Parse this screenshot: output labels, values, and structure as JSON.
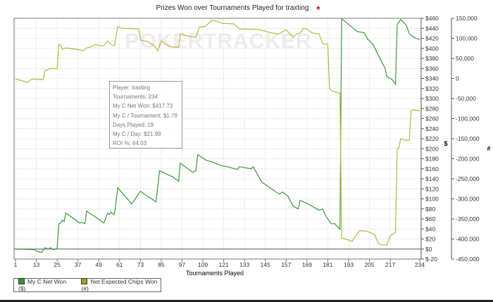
{
  "chart_data": {
    "type": "line",
    "title": "Prizes Won over Tournaments Played for traxting",
    "xlabel": "Tournaments Played",
    "ylabel_left": "$",
    "ylabel_right": "#",
    "xlim": [
      1,
      234
    ],
    "ylim_left": [
      -20,
      460
    ],
    "ylim_right": [
      -450000,
      150000
    ],
    "grid": true,
    "legend_position": "bottom-left",
    "x_ticks": [
      "1",
      "13",
      "25",
      "37",
      "49",
      "61",
      "73",
      "85",
      "97",
      "109",
      "121",
      "133",
      "145",
      "157",
      "169",
      "181",
      "193",
      "205",
      "217",
      "234"
    ],
    "x_tick_values": [
      1,
      13,
      25,
      37,
      49,
      61,
      73,
      85,
      97,
      109,
      121,
      133,
      145,
      157,
      169,
      181,
      193,
      205,
      217,
      234
    ],
    "y_left_ticks": [
      "$-20",
      "$0",
      "$20",
      "$40",
      "$60",
      "$80",
      "$100",
      "$120",
      "$140",
      "$160",
      "$180",
      "$200",
      "$220",
      "$240",
      "$260",
      "$280",
      "$300",
      "$320",
      "$340",
      "$360",
      "$380",
      "$400",
      "$420",
      "$440",
      "$460"
    ],
    "y_left_tick_values": [
      -20,
      0,
      20,
      40,
      60,
      80,
      100,
      120,
      140,
      160,
      180,
      200,
      220,
      240,
      260,
      280,
      300,
      320,
      340,
      360,
      380,
      400,
      420,
      440,
      460
    ],
    "y_right_ticks": [
      "-450,000",
      "-400,000",
      "-350,000",
      "-300,000",
      "-250,000",
      "-200,000",
      "-150,000",
      "-100,000",
      "-50,000",
      "0",
      "50,000",
      "100,000",
      "150,000"
    ],
    "y_right_tick_values": [
      -450000,
      -400000,
      -350000,
      -300000,
      -250000,
      -200000,
      -150000,
      -100000,
      -50000,
      0,
      50000,
      100000,
      150000
    ],
    "series": [
      {
        "name": "My C Net Won ($)",
        "axis": "left",
        "color": "#3a9a3a",
        "points": [
          [
            1,
            0
          ],
          [
            12,
            -1.4
          ],
          [
            14,
            -5.6
          ],
          [
            16,
            -7
          ],
          [
            18,
            2.8
          ],
          [
            20,
            0
          ],
          [
            21,
            2.8
          ],
          [
            23,
            -1.4
          ],
          [
            25,
            1.4
          ],
          [
            26,
            50.5
          ],
          [
            27,
            51.9
          ],
          [
            28,
            57.5
          ],
          [
            29,
            54.7
          ],
          [
            30,
            71.6
          ],
          [
            38,
            51.9
          ],
          [
            39,
            53.3
          ],
          [
            41,
            50.5
          ],
          [
            42,
            75.8
          ],
          [
            52,
            51.9
          ],
          [
            54,
            71.6
          ],
          [
            55,
            68.8
          ],
          [
            56,
            73
          ],
          [
            58,
            68.8
          ],
          [
            60,
            122.1
          ],
          [
            68,
            89.8
          ],
          [
            73,
            115.1
          ],
          [
            82,
            94
          ],
          [
            84,
            155.8
          ],
          [
            92,
            143.2
          ],
          [
            95,
            134.7
          ],
          [
            96,
            171.2
          ],
          [
            103,
            153
          ],
          [
            105,
            155.8
          ],
          [
            106,
            188.1
          ],
          [
            111,
            176.8
          ],
          [
            114,
            174
          ],
          [
            119,
            167
          ],
          [
            123,
            164.2
          ],
          [
            129,
            158.6
          ],
          [
            130,
            164.2
          ],
          [
            137,
            160
          ],
          [
            138,
            164.2
          ],
          [
            143,
            133.3
          ],
          [
            153,
            109.5
          ],
          [
            155,
            113.7
          ],
          [
            158,
            105.3
          ],
          [
            161,
            85.6
          ],
          [
            164,
            80
          ],
          [
            165,
            96.8
          ],
          [
            169,
            91.2
          ],
          [
            176,
            77.2
          ],
          [
            178,
            80
          ],
          [
            180,
            64.6
          ],
          [
            183,
            50.5
          ],
          [
            185,
            50.5
          ],
          [
            188,
            39.3
          ],
          [
            189,
            459
          ],
          [
            194,
            444.9
          ],
          [
            198,
            433.7
          ],
          [
            202,
            430.9
          ],
          [
            204,
            418.3
          ],
          [
            207,
            408.4
          ],
          [
            210,
            387.4
          ],
          [
            214,
            360.7
          ],
          [
            215,
            343.9
          ],
          [
            218,
            338.2
          ],
          [
            220,
            328.4
          ],
          [
            221,
            447.7
          ],
          [
            223,
            457.5
          ],
          [
            226,
            447.7
          ],
          [
            228,
            429.5
          ],
          [
            229,
            425.3
          ],
          [
            232,
            419.7
          ],
          [
            234,
            417.73
          ]
        ]
      },
      {
        "name": "Net Expected Chips Won (#)",
        "axis": "right",
        "color": "#b5b840",
        "points": [
          [
            1,
            -1000
          ],
          [
            5,
            -6100
          ],
          [
            8,
            -9600
          ],
          [
            10,
            -2600
          ],
          [
            12,
            -900
          ],
          [
            14,
            -2600
          ],
          [
            17,
            -2600
          ],
          [
            18,
            20200
          ],
          [
            20,
            21900
          ],
          [
            21,
            25400
          ],
          [
            25,
            23700
          ],
          [
            26,
            85100
          ],
          [
            27,
            81600
          ],
          [
            28,
            72800
          ],
          [
            30,
            76300
          ],
          [
            36,
            72800
          ],
          [
            38,
            71100
          ],
          [
            40,
            69300
          ],
          [
            42,
            76300
          ],
          [
            44,
            78100
          ],
          [
            47,
            85100
          ],
          [
            50,
            81600
          ],
          [
            52,
            81600
          ],
          [
            54,
            93900
          ],
          [
            56,
            85100
          ],
          [
            58,
            81600
          ],
          [
            60,
            128900
          ],
          [
            62,
            125400
          ],
          [
            72,
            123700
          ],
          [
            73,
            95600
          ],
          [
            77,
            92100
          ],
          [
            81,
            81600
          ],
          [
            83,
            69300
          ],
          [
            85,
            93900
          ],
          [
            87,
            86800
          ],
          [
            89,
            81600
          ],
          [
            92,
            78100
          ],
          [
            95,
            78100
          ],
          [
            96,
            111400
          ],
          [
            100,
            106100
          ],
          [
            105,
            102600
          ],
          [
            107,
            128900
          ],
          [
            110,
            128900
          ],
          [
            113,
            139500
          ],
          [
            114,
            144700
          ],
          [
            117,
            143000
          ],
          [
            120,
            137700
          ],
          [
            127,
            136000
          ],
          [
            130,
            123700
          ],
          [
            141,
            121900
          ],
          [
            143,
            120200
          ],
          [
            149,
            113200
          ],
          [
            153,
            111400
          ],
          [
            157,
            121900
          ],
          [
            161,
            102600
          ],
          [
            163,
            111400
          ],
          [
            165,
            113200
          ],
          [
            167,
            125400
          ],
          [
            169,
            123700
          ],
          [
            172,
            113200
          ],
          [
            176,
            111400
          ],
          [
            178,
            86800
          ],
          [
            181,
            85100
          ],
          [
            182,
            -25400
          ],
          [
            184,
            -32500
          ],
          [
            188,
            -36000
          ],
          [
            189,
            -397400
          ],
          [
            192,
            -400900
          ],
          [
            195,
            -406200
          ],
          [
            199,
            -379800
          ],
          [
            203,
            -379800
          ],
          [
            208,
            -388600
          ],
          [
            210,
            -409700
          ],
          [
            212,
            -414900
          ],
          [
            215,
            -414900
          ],
          [
            217,
            -392100
          ],
          [
            220,
            -383300
          ],
          [
            221,
            -176300
          ],
          [
            222,
            -172800
          ],
          [
            223,
            -150000
          ],
          [
            225,
            -153500
          ],
          [
            228,
            -153500
          ],
          [
            229,
            -79800
          ],
          [
            230,
            -78100
          ],
          [
            232,
            -79800
          ],
          [
            234,
            -79800
          ]
        ]
      }
    ]
  },
  "watermark": "POKERTRACKER",
  "stats": {
    "player": "Player: traxting",
    "tournaments": "Tournaments: 234",
    "net_won": "My C Net Won: $417.73",
    "per_tournament": "My C / Tournament: $1.79",
    "days_played": "Days Played: 19",
    "per_day": "My C / Day: $21.99",
    "roi": "ROI %: 64.03"
  },
  "legend": {
    "items": [
      {
        "label": "My C Net Won ($)",
        "color": "#2e9a2e"
      },
      {
        "label": "Net Expected Chips Won (#)",
        "color": "#a0a020"
      }
    ]
  }
}
